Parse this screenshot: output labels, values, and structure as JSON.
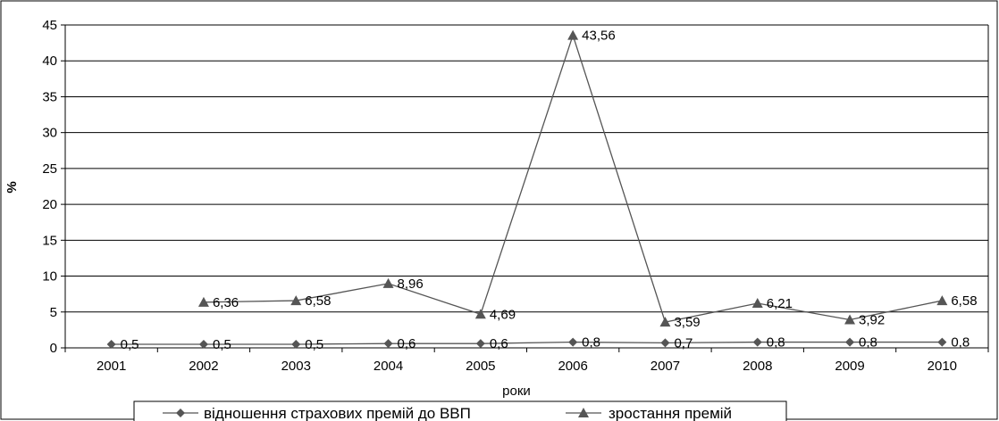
{
  "chart_data": {
    "type": "line",
    "categories": [
      "2001",
      "2002",
      "2003",
      "2004",
      "2005",
      "2006",
      "2007",
      "2008",
      "2009",
      "2010"
    ],
    "series": [
      {
        "name": "відношення страхових премій до ВВП",
        "marker": "diamond",
        "values": [
          0.5,
          0.5,
          0.5,
          0.6,
          0.6,
          0.8,
          0.7,
          0.8,
          0.8,
          0.8
        ],
        "labels": [
          "0,5",
          "0,5",
          "0,5",
          "0,6",
          "0,6",
          "0,8",
          "0,7",
          "0,8",
          "0,8",
          "0,8"
        ]
      },
      {
        "name": "зростання премій",
        "marker": "triangle",
        "values": [
          null,
          6.36,
          6.58,
          8.96,
          4.69,
          43.56,
          3.59,
          6.21,
          3.92,
          6.58
        ],
        "labels": [
          "",
          "6,36",
          "6,58",
          "8,96",
          "4,69",
          "43,56",
          "3,59",
          "6,21",
          "3,92",
          "6,58"
        ]
      }
    ],
    "xlabel": "роки",
    "ylabel": "%",
    "ylim": [
      0,
      45
    ],
    "yticks": [
      0,
      5,
      10,
      15,
      20,
      25,
      30,
      35,
      40,
      45
    ],
    "grid": true,
    "legend": "bottom",
    "colors": {
      "line": "#555555",
      "marker": "#555555",
      "grid": "#000000",
      "axis": "#000000"
    }
  }
}
